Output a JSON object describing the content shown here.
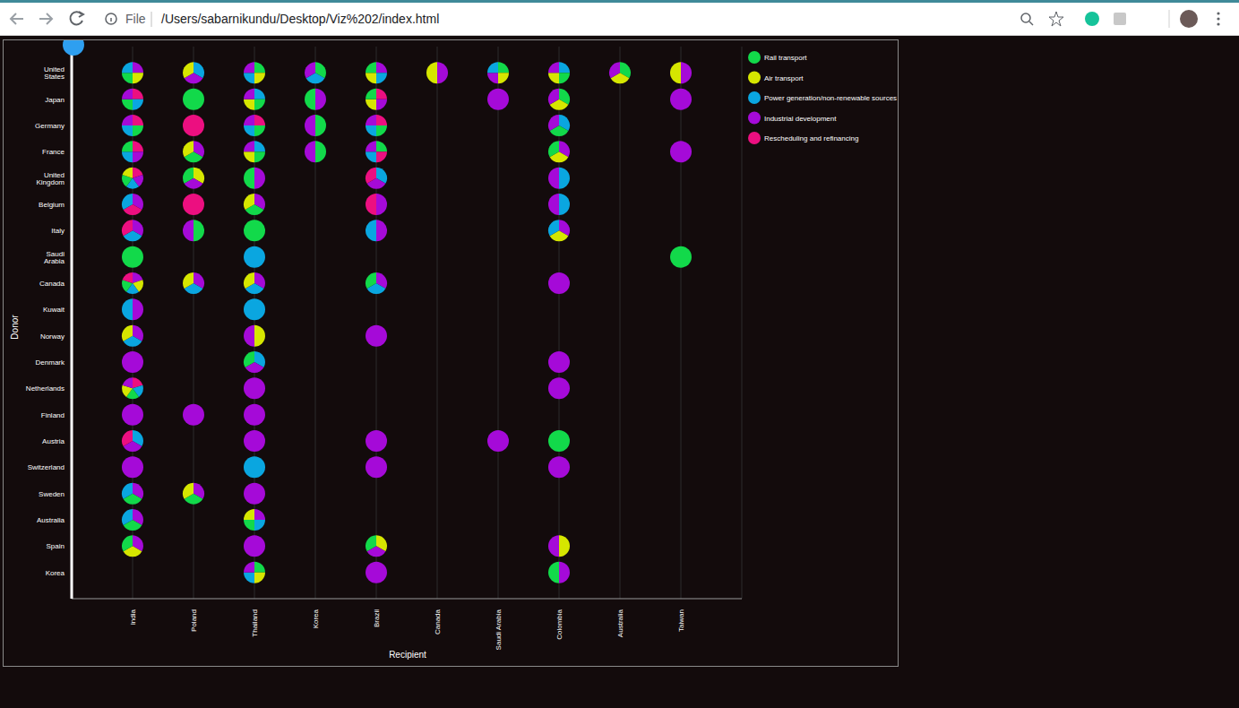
{
  "browser": {
    "file_label": "File",
    "url": "/Users/sabarnikundu/Desktop/Viz%202/index.html"
  },
  "chart_data": {
    "type": "pie_grid",
    "x_label": "Recipient",
    "y_label": "Donor",
    "grid": true,
    "legend": "top right",
    "categories": [
      "India",
      "Poland",
      "Thailand",
      "Korea",
      "Brazil",
      "Canada",
      "Saudi Arabia",
      "Colombia",
      "Australia",
      "Taiwan"
    ],
    "y_categories": [
      "United States",
      "Japan",
      "Germany",
      "France",
      "United Kingdom",
      "Belgium",
      "Italy",
      "Saudi Arabia",
      "Canada",
      "Kuwait",
      "Norway",
      "Denmark",
      "Netherlands",
      "Finland",
      "Austria",
      "Switzerland",
      "Sweden",
      "Australia",
      "Spain",
      "Korea"
    ],
    "series": [
      {
        "name": "Rail transport",
        "color": "#12d94a"
      },
      {
        "name": "Air transport",
        "color": "#d6e600"
      },
      {
        "name": "Power generation/non-renewable sources",
        "color": "#0aa6e0"
      },
      {
        "name": "Industrial development",
        "color": "#a50ad8"
      },
      {
        "name": "Rescheduling and refinancing",
        "color": "#ec0f80"
      }
    ],
    "cells": {
      "United States": {
        "India": [
          "Industrial development",
          "Air transport",
          "Rail transport",
          "Power generation/non-renewable sources"
        ],
        "Poland": [
          "Power generation/non-renewable sources",
          "Industrial development",
          "Air transport"
        ],
        "Thailand": [
          "Rail transport",
          "Air transport",
          "Power generation/non-renewable sources",
          "Industrial development"
        ],
        "Korea": [
          "Rail transport",
          "Power generation/non-renewable sources",
          "Industrial development"
        ],
        "Brazil": [
          "Industrial development",
          "Power generation/non-renewable sources",
          "Air transport",
          "Rail transport"
        ],
        "Canada": [
          "Industrial development",
          "Air transport"
        ],
        "Saudi Arabia": [
          "Rail transport",
          "Air transport",
          "Industrial development",
          "Power generation/non-renewable sources"
        ],
        "Colombia": [
          "Power generation/non-renewable sources",
          "Rail transport",
          "Air transport",
          "Industrial development"
        ],
        "Australia": [
          "Rail transport",
          "Air transport",
          "Industrial development"
        ],
        "Taiwan": [
          "Industrial development",
          "Air transport"
        ]
      },
      "Japan": {
        "India": [
          "Rescheduling and refinancing",
          "Power generation/non-renewable sources",
          "Rail transport",
          "Industrial development"
        ],
        "Poland": [
          "Rail transport"
        ],
        "Thailand": [
          "Power generation/non-renewable sources",
          "Rail transport",
          "Air transport",
          "Industrial development"
        ],
        "Korea": [
          "Industrial development",
          "Rail transport"
        ],
        "Brazil": [
          "Rescheduling and refinancing",
          "Industrial development",
          "Air transport",
          "Rail transport"
        ],
        "Saudi Arabia": [
          "Industrial development"
        ],
        "Colombia": [
          "Rail transport",
          "Air transport",
          "Industrial development"
        ],
        "Taiwan": [
          "Industrial development"
        ]
      },
      "Germany": {
        "India": [
          "Rescheduling and refinancing",
          "Rail transport",
          "Power generation/non-renewable sources",
          "Industrial development"
        ],
        "Poland": [
          "Rescheduling and refinancing"
        ],
        "Thailand": [
          "Rescheduling and refinancing",
          "Rail transport",
          "Power generation/non-renewable sources",
          "Industrial development"
        ],
        "Korea": [
          "Rail transport",
          "Industrial development"
        ],
        "Brazil": [
          "Rescheduling and refinancing",
          "Rail transport",
          "Power generation/non-renewable sources",
          "Industrial development"
        ],
        "Colombia": [
          "Power generation/non-renewable sources",
          "Rail transport",
          "Industrial development"
        ]
      },
      "France": {
        "India": [
          "Rescheduling and refinancing",
          "Industrial development",
          "Power generation/non-renewable sources",
          "Rail transport"
        ],
        "Poland": [
          "Industrial development",
          "Rail transport",
          "Air transport"
        ],
        "Thailand": [
          "Power generation/non-renewable sources",
          "Rail transport",
          "Air transport",
          "Industrial development"
        ],
        "Korea": [
          "Rail transport",
          "Industrial development"
        ],
        "Brazil": [
          "Rail transport",
          "Rescheduling and refinancing",
          "Power generation/non-renewable sources",
          "Industrial development"
        ],
        "Colombia": [
          "Industrial development",
          "Air transport",
          "Rail transport"
        ],
        "Taiwan": [
          "Industrial development"
        ]
      },
      "United Kingdom": {
        "India": [
          "Rescheduling and refinancing",
          "Industrial development",
          "Power generation/non-renewable sources",
          "Rail transport",
          "Air transport"
        ],
        "Poland": [
          "Air transport",
          "Industrial development",
          "Rail transport"
        ],
        "Thailand": [
          "Industrial development",
          "Rail transport"
        ],
        "Brazil": [
          "Power generation/non-renewable sources",
          "Industrial development",
          "Rescheduling and refinancing"
        ],
        "Colombia": [
          "Power generation/non-renewable sources",
          "Industrial development"
        ]
      },
      "Belgium": {
        "India": [
          "Industrial development",
          "Rescheduling and refinancing",
          "Power generation/non-renewable sources"
        ],
        "Poland": [
          "Rescheduling and refinancing"
        ],
        "Thailand": [
          "Industrial development",
          "Rail transport",
          "Air transport"
        ],
        "Brazil": [
          "Industrial development",
          "Rescheduling and refinancing"
        ],
        "Colombia": [
          "Power generation/non-renewable sources",
          "Industrial development"
        ]
      },
      "Italy": {
        "India": [
          "Industrial development",
          "Power generation/non-renewable sources",
          "Rescheduling and refinancing"
        ],
        "Poland": [
          "Rail transport",
          "Industrial development"
        ],
        "Thailand": [
          "Rail transport"
        ],
        "Brazil": [
          "Industrial development",
          "Power generation/non-renewable sources"
        ],
        "Colombia": [
          "Industrial development",
          "Air transport",
          "Power generation/non-renewable sources"
        ]
      },
      "Saudi Arabia": {
        "India": [
          "Rail transport"
        ],
        "Thailand": [
          "Power generation/non-renewable sources"
        ],
        "Taiwan": [
          "Rail transport"
        ]
      },
      "Canada": {
        "India": [
          "Industrial development",
          "Air transport",
          "Power generation/non-renewable sources",
          "Rail transport",
          "Rescheduling and refinancing"
        ],
        "Poland": [
          "Industrial development",
          "Power generation/non-renewable sources",
          "Air transport"
        ],
        "Thailand": [
          "Industrial development",
          "Power generation/non-renewable sources",
          "Air transport"
        ],
        "Brazil": [
          "Industrial development",
          "Power generation/non-renewable sources",
          "Rail transport"
        ],
        "Colombia": [
          "Industrial development"
        ]
      },
      "Kuwait": {
        "India": [
          "Industrial development",
          "Power generation/non-renewable sources"
        ],
        "Thailand": [
          "Power generation/non-renewable sources"
        ]
      },
      "Norway": {
        "India": [
          "Industrial development",
          "Power generation/non-renewable sources",
          "Air transport"
        ],
        "Thailand": [
          "Air transport",
          "Industrial development"
        ],
        "Brazil": [
          "Industrial development"
        ]
      },
      "Denmark": {
        "India": [
          "Industrial development"
        ],
        "Thailand": [
          "Power generation/non-renewable sources",
          "Industrial development",
          "Rail transport"
        ],
        "Colombia": [
          "Industrial development"
        ]
      },
      "Netherlands": {
        "India": [
          "Rescheduling and refinancing",
          "Power generation/non-renewable sources",
          "Rail transport",
          "Air transport",
          "Industrial development"
        ],
        "Thailand": [
          "Industrial development"
        ],
        "Colombia": [
          "Industrial development"
        ]
      },
      "Finland": {
        "India": [
          "Industrial development"
        ],
        "Poland": [
          "Industrial development"
        ],
        "Thailand": [
          "Industrial development"
        ]
      },
      "Austria": {
        "India": [
          "Power generation/non-renewable sources",
          "Industrial development",
          "Rescheduling and refinancing"
        ],
        "Thailand": [
          "Industrial development"
        ],
        "Brazil": [
          "Industrial development"
        ],
        "Saudi Arabia": [
          "Industrial development"
        ],
        "Colombia": [
          "Rail transport"
        ]
      },
      "Switzerland": {
        "India": [
          "Industrial development"
        ],
        "Thailand": [
          "Power generation/non-renewable sources"
        ],
        "Brazil": [
          "Industrial development"
        ],
        "Colombia": [
          "Industrial development"
        ]
      },
      "Sweden": {
        "India": [
          "Industrial development",
          "Rail transport",
          "Power generation/non-renewable sources"
        ],
        "Poland": [
          "Industrial development",
          "Rail transport",
          "Air transport"
        ],
        "Thailand": [
          "Industrial development"
        ]
      },
      "Australia": {
        "India": [
          "Industrial development",
          "Rail transport",
          "Power generation/non-renewable sources"
        ],
        "Thailand": [
          "Industrial development",
          "Power generation/non-renewable sources",
          "Rail transport",
          "Air transport"
        ]
      },
      "Spain": {
        "India": [
          "Industrial development",
          "Air transport",
          "Rail transport"
        ],
        "Thailand": [
          "Industrial development"
        ],
        "Brazil": [
          "Air transport",
          "Industrial development",
          "Rail transport"
        ],
        "Colombia": [
          "Air transport",
          "Industrial development"
        ]
      },
      "Korea": {
        "Thailand": [
          "Rail transport",
          "Air transport",
          "Power generation/non-renewable sources",
          "Industrial development"
        ],
        "Brazil": [
          "Industrial development"
        ],
        "Colombia": [
          "Industrial development",
          "Rail transport"
        ]
      }
    }
  }
}
